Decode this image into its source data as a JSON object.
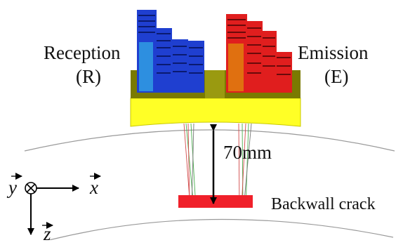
{
  "labels": {
    "reception_title": "Reception",
    "reception_code": "(R)",
    "emission_title": "Emission",
    "emission_code": "(E)",
    "depth": "70mm",
    "crack": "Backwall crack",
    "axis_y": "y",
    "axis_x": "x",
    "axis_z": "z"
  },
  "colors": {
    "reception_array": "#1f3fd0",
    "emission_array": "#e01e1e",
    "emission_accent": "#e07010",
    "wedge": "#ffff26",
    "wedge_holder": "#7a7a00",
    "crack": "#f0202a",
    "rays_green": "#4caf50",
    "rays_red": "#d24a4a"
  }
}
